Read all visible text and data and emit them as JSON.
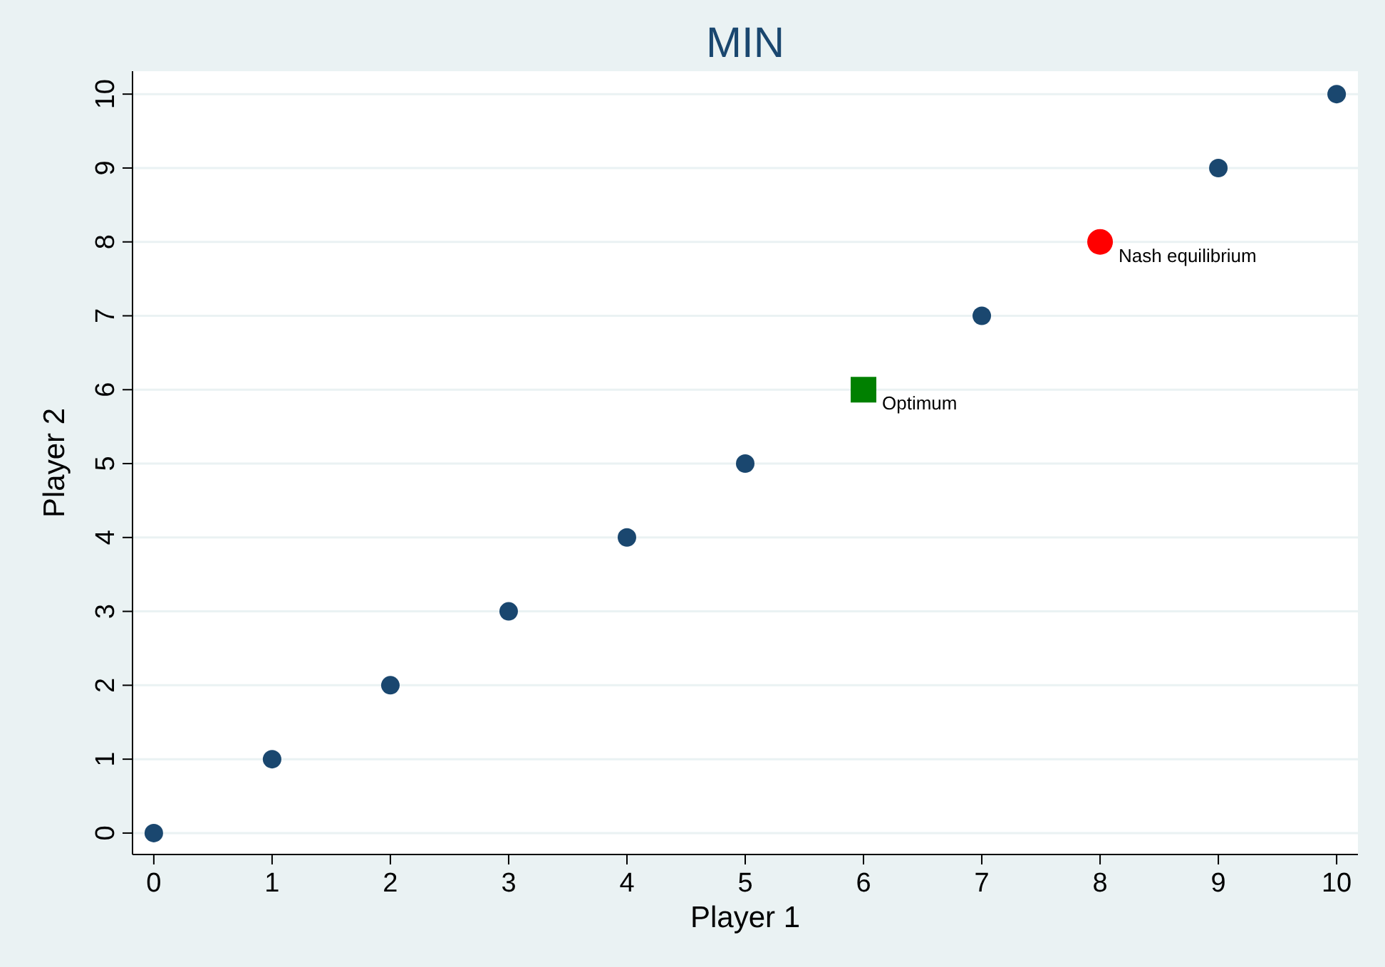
{
  "chart_data": {
    "type": "scatter",
    "title": "MIN",
    "xlabel": "Player 1",
    "ylabel": "Player 2",
    "xlim": [
      -0.18,
      10.18
    ],
    "ylim": [
      -0.29,
      10.31
    ],
    "xticks": [
      0,
      1,
      2,
      3,
      4,
      5,
      6,
      7,
      8,
      9,
      10
    ],
    "yticks": [
      0,
      1,
      2,
      3,
      4,
      5,
      6,
      7,
      8,
      9,
      10
    ],
    "grid": "y",
    "marker": "circle",
    "series": [
      {
        "color": "#1a476f",
        "x": [
          0,
          1,
          2,
          3,
          4,
          5,
          7,
          9,
          10
        ],
        "values": [
          0,
          1,
          2,
          3,
          4,
          5,
          7,
          9,
          10
        ]
      },
      {
        "name": "Optimum",
        "color": "#008000",
        "marker": "square",
        "x": [
          6
        ],
        "values": [
          6
        ]
      },
      {
        "name": "Nash equilibrium",
        "color": "#ff0000",
        "marker": "circle",
        "x": [
          8
        ],
        "values": [
          8
        ]
      }
    ]
  }
}
